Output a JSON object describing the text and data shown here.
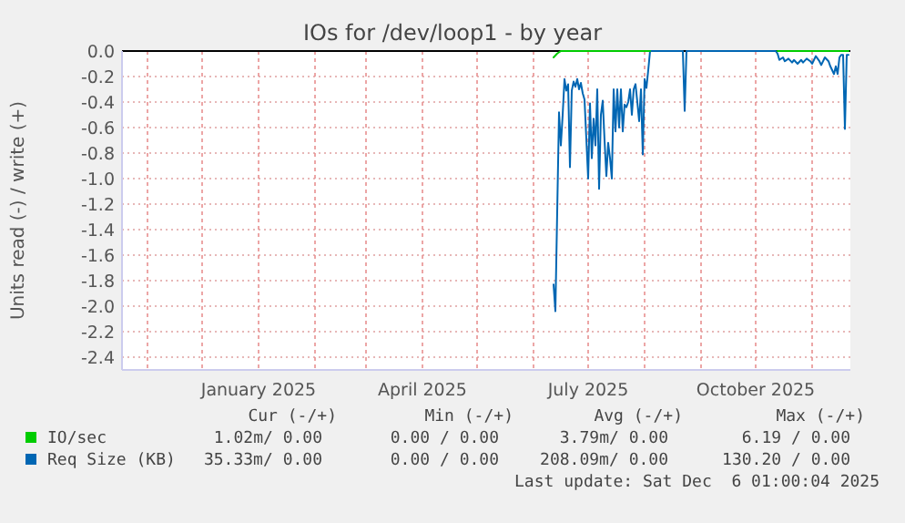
{
  "chart_data": {
    "type": "line",
    "title": "IOs for /dev/loop1 - by year",
    "ylabel": "Units read (-) / write (+)",
    "xlim": [
      "2024-10-18",
      "2025-11-22"
    ],
    "xticks": [
      {
        "value": "2024-11-01",
        "label": null
      },
      {
        "value": "2024-12-01",
        "label": null
      },
      {
        "value": "2025-01-01",
        "label": "January 2025"
      },
      {
        "value": "2025-02-01",
        "label": null
      },
      {
        "value": "2025-03-01",
        "label": null
      },
      {
        "value": "2025-04-01",
        "label": "April 2025"
      },
      {
        "value": "2025-05-01",
        "label": null
      },
      {
        "value": "2025-06-01",
        "label": null
      },
      {
        "value": "2025-07-01",
        "label": "July 2025"
      },
      {
        "value": "2025-08-01",
        "label": null
      },
      {
        "value": "2025-09-01",
        "label": null
      },
      {
        "value": "2025-10-01",
        "label": "October 2025"
      },
      {
        "value": "2025-11-01",
        "label": null
      }
    ],
    "ylim": [
      -2.5,
      0
    ],
    "yticks": [
      {
        "value": -2.4,
        "label": "-2.4"
      },
      {
        "value": -2.2,
        "label": "-2.2"
      },
      {
        "value": -2,
        "label": "-2.0"
      },
      {
        "value": -1.8,
        "label": "-1.8"
      },
      {
        "value": -1.6,
        "label": "-1.6"
      },
      {
        "value": -1.4,
        "label": "-1.4"
      },
      {
        "value": -1.2,
        "label": "-1.2"
      },
      {
        "value": -1,
        "label": "-1.0"
      },
      {
        "value": -0.8,
        "label": "-0.8"
      },
      {
        "value": -0.6,
        "label": "-0.6"
      },
      {
        "value": -0.4,
        "label": "-0.4"
      },
      {
        "value": -0.2,
        "label": "-0.2"
      },
      {
        "value": 0,
        "label": "0.0"
      }
    ],
    "grid": true,
    "legend": "bottom",
    "ref_lines": [
      {
        "axis": "y",
        "value": 0,
        "color": "#000000"
      }
    ],
    "series": [
      {
        "name": "IO/sec",
        "color": "#00cc00",
        "x": [
          "2025-06-12",
          "2025-06-14",
          "2025-06-16",
          "2025-08-04",
          "2025-09-01",
          "2025-10-13",
          "2025-11-21"
        ],
        "values": [
          -0.05,
          -0.02,
          0,
          0,
          null,
          0,
          0
        ]
      },
      {
        "name": "Req Size (KB)",
        "color": "#0066b3",
        "x": [
          "2025-06-12",
          "2025-06-13",
          "2025-06-15",
          "2025-06-16",
          "2025-06-17",
          "2025-06-18",
          "2025-06-19",
          "2025-06-20",
          "2025-06-21",
          "2025-06-22",
          "2025-06-23",
          "2025-06-24",
          "2025-06-25",
          "2025-06-26",
          "2025-06-27",
          "2025-06-28",
          "2025-06-29",
          "2025-07-01",
          "2025-07-02",
          "2025-07-03",
          "2025-07-04",
          "2025-07-05",
          "2025-07-06",
          "2025-07-07",
          "2025-07-08",
          "2025-07-09",
          "2025-07-10",
          "2025-07-11",
          "2025-07-12",
          "2025-07-13",
          "2025-07-14",
          "2025-07-15",
          "2025-07-16",
          "2025-07-17",
          "2025-07-18",
          "2025-07-19",
          "2025-07-20",
          "2025-07-21",
          "2025-07-22",
          "2025-07-23",
          "2025-07-24",
          "2025-07-25",
          "2025-07-26",
          "2025-07-27",
          "2025-07-28",
          "2025-07-29",
          "2025-07-30",
          "2025-07-31",
          "2025-08-01",
          "2025-08-02",
          "2025-08-03",
          "2025-08-04",
          "2025-08-22",
          "2025-08-23",
          "2025-08-24",
          "2025-10-12",
          "2025-10-13",
          "2025-10-14",
          "2025-10-16",
          "2025-10-17",
          "2025-10-19",
          "2025-10-21",
          "2025-10-22",
          "2025-10-24",
          "2025-10-26",
          "2025-10-27",
          "2025-10-29",
          "2025-10-31",
          "2025-11-01",
          "2025-11-03",
          "2025-11-05",
          "2025-11-06",
          "2025-11-08",
          "2025-11-10",
          "2025-11-11",
          "2025-11-13",
          "2025-11-14",
          "2025-11-15",
          "2025-11-16",
          "2025-11-17",
          "2025-11-18",
          "2025-11-19",
          "2025-11-20",
          "2025-11-21"
        ],
        "values": [
          -1.83,
          -2.04,
          -0.48,
          -0.74,
          -0.5,
          -0.22,
          -0.31,
          -0.26,
          -0.91,
          -0.31,
          -0.24,
          -0.28,
          -0.22,
          -0.3,
          -0.25,
          -0.33,
          -0.38,
          -1.0,
          -0.41,
          -0.84,
          -0.53,
          -0.74,
          -0.3,
          -1.08,
          -0.5,
          -0.39,
          -0.7,
          -0.98,
          -0.72,
          -0.84,
          -1.0,
          -0.3,
          -0.63,
          -0.3,
          -0.6,
          -0.3,
          -0.63,
          -0.42,
          -0.44,
          -0.4,
          -0.3,
          -0.5,
          -0.3,
          -0.26,
          -0.4,
          -0.55,
          -0.3,
          -0.81,
          -0.22,
          -0.29,
          -0.15,
          0,
          0,
          -0.47,
          0,
          0,
          -0.02,
          -0.07,
          -0.05,
          -0.08,
          -0.06,
          -0.09,
          -0.07,
          -0.1,
          -0.07,
          -0.09,
          -0.06,
          -0.08,
          -0.1,
          -0.04,
          -0.08,
          -0.11,
          -0.05,
          -0.08,
          -0.12,
          -0.18,
          -0.12,
          -0.18,
          -0.05,
          -0.03,
          -0.03,
          -0.61,
          -0.03,
          -0.03
        ]
      }
    ],
    "annotations": [
      "Cur (-/+)",
      "Min (-/+)",
      "Avg (-/+)",
      "Max (-/+)",
      "1.02m/ 0.00",
      "0.00 / 0.00",
      "3.79m/ 0.00",
      "6.19 / 0.00",
      "35.33m/ 0.00",
      "0.00 / 0.00",
      "208.09m/ 0.00",
      "130.20 / 0.00",
      "Last update: Sat Dec  6 01:00:04 2025"
    ]
  }
}
